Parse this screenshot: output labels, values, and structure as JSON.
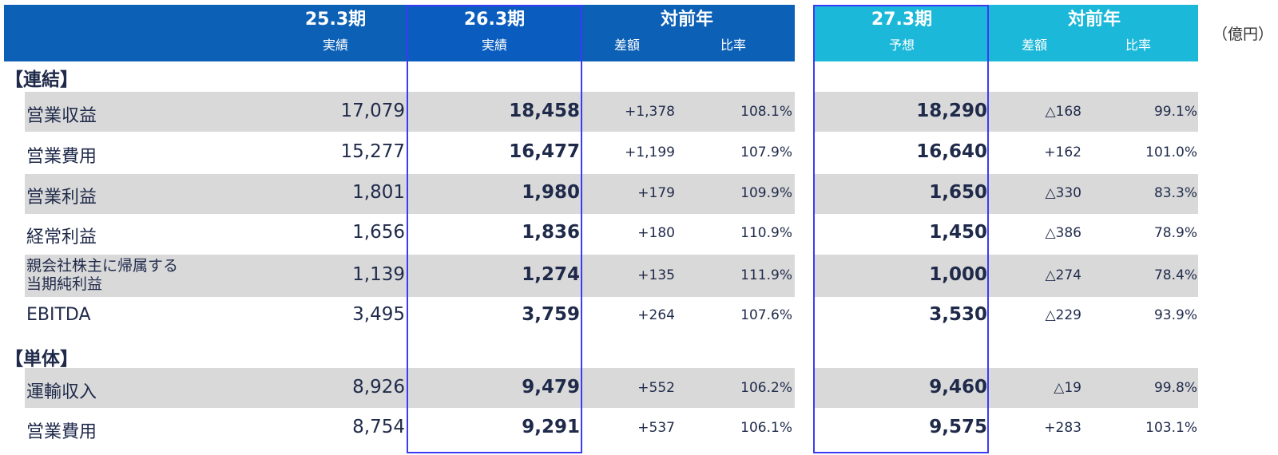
{
  "header": {
    "col_25": {
      "period": "25.3期",
      "type": "実績"
    },
    "col_26": {
      "period": "26.3期",
      "type": "実績"
    },
    "yoy_1": {
      "title": "対前年",
      "diff": "差額",
      "ratio": "比率"
    },
    "col_27": {
      "period": "27.3期",
      "type": "予想"
    },
    "yoy_2": {
      "title": "対前年",
      "diff": "差額",
      "ratio": "比率"
    },
    "unit": "（億円）"
  },
  "sections": {
    "consolidated": "【連結】",
    "standalone": "【単体】"
  },
  "rows": [
    {
      "label": "営業収益",
      "v25": "17,079",
      "v26": "18,458",
      "d1": "+1,378",
      "r1": "108.1%",
      "v27": "18,290",
      "d2": "△168",
      "r2": "99.1%"
    },
    {
      "label": "営業費用",
      "v25": "15,277",
      "v26": "16,477",
      "d1": "+1,199",
      "r1": "107.9%",
      "v27": "16,640",
      "d2": "+162",
      "r2": "101.0%"
    },
    {
      "label": "営業利益",
      "v25": "1,801",
      "v26": "1,980",
      "d1": "+179",
      "r1": "109.9%",
      "v27": "1,650",
      "d2": "△330",
      "r2": "83.3%"
    },
    {
      "label": "経常利益",
      "v25": "1,656",
      "v26": "1,836",
      "d1": "+180",
      "r1": "110.9%",
      "v27": "1,450",
      "d2": "△386",
      "r2": "78.9%"
    },
    {
      "label_line1": "親会社株主に帰属する",
      "label_line2": "当期純利益",
      "v25": "1,139",
      "v26": "1,274",
      "d1": "+135",
      "r1": "111.9%",
      "v27": "1,000",
      "d2": "△274",
      "r2": "78.4%"
    },
    {
      "label": "EBITDA",
      "v25": "3,495",
      "v26": "3,759",
      "d1": "+264",
      "r1": "107.6%",
      "v27": "3,530",
      "d2": "△229",
      "r2": "93.9%"
    },
    {
      "label": "運輸収入",
      "v25": "8,926",
      "v26": "9,479",
      "d1": "+552",
      "r1": "106.2%",
      "v27": "9,460",
      "d2": "△19",
      "r2": "99.8%"
    },
    {
      "label": "営業費用",
      "v25": "8,754",
      "v26": "9,291",
      "d1": "+537",
      "r1": "106.1%",
      "v27": "9,575",
      "d2": "+283",
      "r2": "103.1%"
    }
  ],
  "colors": {
    "header_blue": "#0c60b6",
    "header_cyan": "#1bb8d9",
    "band_gray": "#d9d9d9",
    "frame_blue": "#3b3bf5"
  }
}
